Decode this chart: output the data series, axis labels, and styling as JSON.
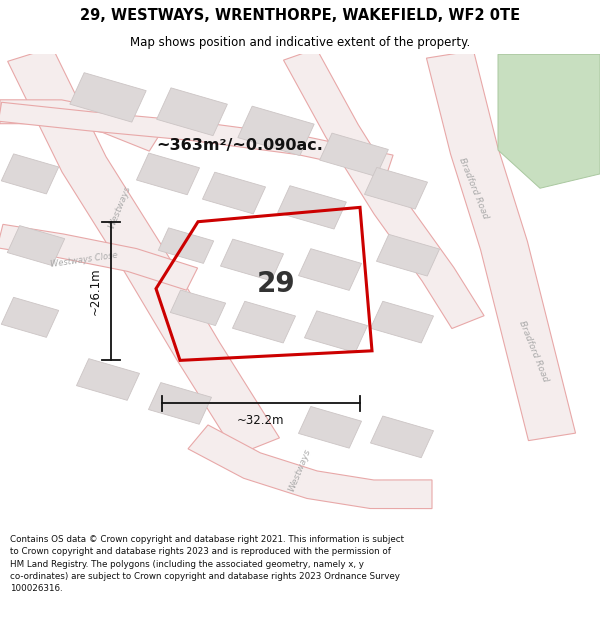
{
  "title": "29, WESTWAYS, WRENTHORPE, WAKEFIELD, WF2 0TE",
  "subtitle": "Map shows position and indicative extent of the property.",
  "footer": "Contains OS data © Crown copyright and database right 2021. This information is subject to Crown copyright and database rights 2023 and is reproduced with the permission of HM Land Registry. The polygons (including the associated geometry, namely x, y co-ordinates) are subject to Crown copyright and database rights 2023 Ordnance Survey 100026316.",
  "area_text": "~363m²/~0.090ac.",
  "width_label": "~32.2m",
  "height_label": "~26.1m",
  "number_label": "29",
  "map_bg": "#f7f3f3",
  "road_fill": "#f5eded",
  "road_outline": "#e8a8a8",
  "building_fill": "#ddd8d8",
  "building_edge": "#ccc5c5",
  "plot_color": "#cc0000",
  "green_fill": "#c8dfc0",
  "green_edge": "#aac8a0",
  "street_color": "#aaaaaa",
  "dim_color": "#111111",
  "text_color": "#222222"
}
